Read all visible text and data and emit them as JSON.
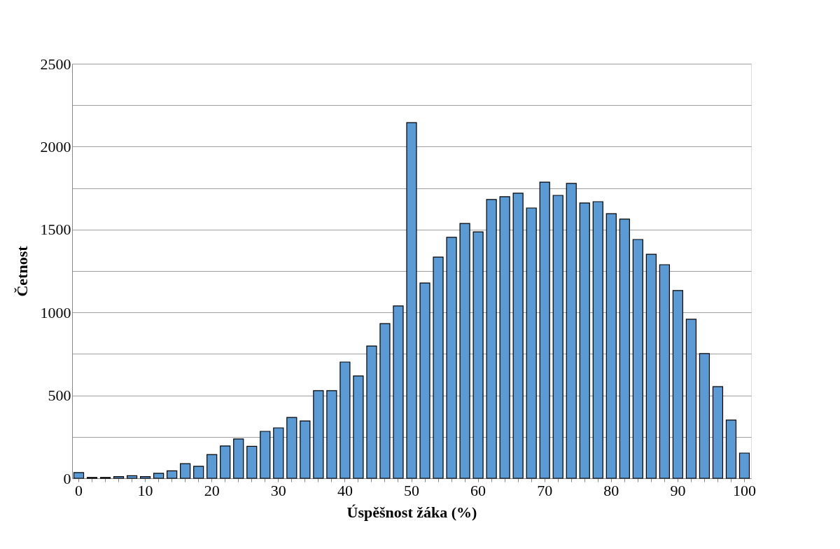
{
  "chart_data": {
    "type": "bar",
    "xlabel": "Úspěšnost žáka (%)",
    "ylabel": "Četnost",
    "categories": [
      "0",
      null,
      null,
      null,
      null,
      "10",
      null,
      null,
      null,
      null,
      "20",
      null,
      null,
      null,
      null,
      "30",
      null,
      null,
      null,
      null,
      "40",
      null,
      null,
      null,
      null,
      "50",
      null,
      null,
      null,
      null,
      "60",
      null,
      null,
      null,
      null,
      "70",
      null,
      null,
      null,
      null,
      "80",
      null,
      null,
      null,
      null,
      "90",
      null,
      null,
      null,
      null,
      "100"
    ],
    "values": [
      34,
      5,
      5,
      10,
      15,
      10,
      30,
      45,
      88,
      72,
      143,
      195,
      237,
      193,
      283,
      304,
      367,
      346,
      528,
      528,
      701,
      617,
      798,
      933,
      1039,
      2145,
      1178,
      1334,
      1453,
      1537,
      1486,
      1681,
      1698,
      1719,
      1630,
      1786,
      1706,
      1778,
      1660,
      1668,
      1596,
      1563,
      1440,
      1351,
      1288,
      1132,
      959,
      752,
      553,
      351,
      152
    ],
    "color": "#5b9bd5",
    "ylim": [
      0,
      2500
    ],
    "yticks": [
      0,
      {
        "value": 250,
        "label": null
      },
      500,
      {
        "value": 750,
        "label": null
      },
      1000,
      {
        "value": 1250,
        "label": null
      },
      1500,
      {
        "value": 1750,
        "label": null
      },
      2000,
      {
        "value": 2250,
        "label": null
      },
      2500
    ],
    "grid": "y"
  }
}
